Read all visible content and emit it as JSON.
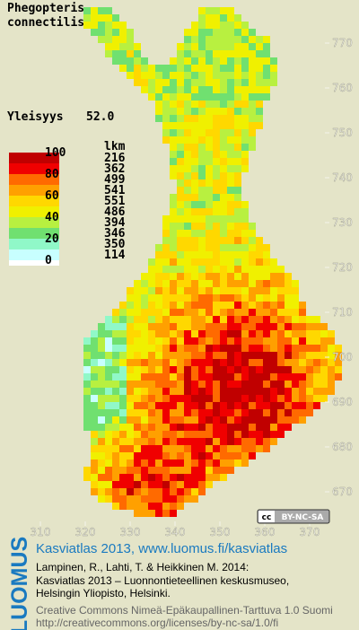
{
  "map": {
    "title": [
      "Phegopteris",
      "connectilis"
    ],
    "frequency": {
      "label": "Yleisyys",
      "value": "52.0"
    },
    "legend": {
      "count_header": "lkm",
      "scale_labels": [
        "100",
        "80",
        "60",
        "40",
        "20",
        "0"
      ],
      "colors": [
        "#c00000",
        "#f00000",
        "#ff6a00",
        "#ffa000",
        "#ffd800",
        "#f0f000",
        "#b8f040",
        "#70e070",
        "#90f8c8",
        "#c8ffff"
      ],
      "counts": [
        216,
        362,
        499,
        541,
        551,
        486,
        394,
        346,
        350,
        114
      ],
      "zero_color": "#ffffff"
    },
    "yticks": [
      770,
      760,
      750,
      740,
      730,
      720,
      710,
      700,
      690,
      680,
      670
    ],
    "xticks": [
      310,
      320,
      330,
      340,
      350,
      360,
      370
    ],
    "license_badge": "BY-NC-SA",
    "footer": {
      "brand": "LUOMUS",
      "heading": "Kasviatlas 2013, www.luomus.fi/kasviatlas",
      "citation": [
        "Lampinen, R., Lahti, T. & Heikkinen M. 2014:",
        "Kasviatlas 2013 – Luonnontieteellinen keskusmuseo,",
        "Helsingin Yliopisto, Helsinki."
      ],
      "license": [
        "Creative Commons Nimeä-Epäkaupallinen-Tarttuva 1.0 Suomi",
        "http://creativecommons.org/licenses/by-nc-sa/1.0/fi"
      ]
    }
  }
}
